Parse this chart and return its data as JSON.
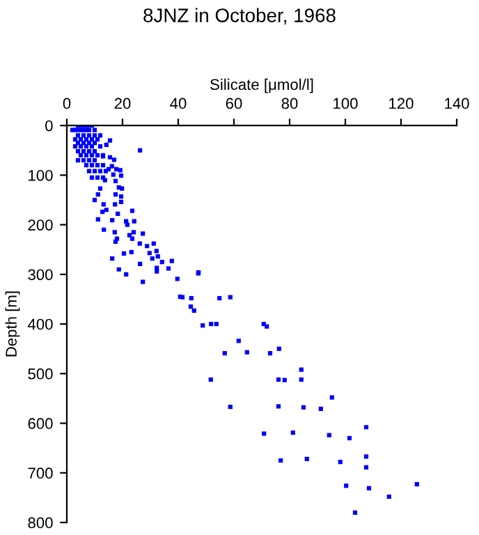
{
  "chart_data": {
    "type": "scatter",
    "title": "8JNZ in October, 1968",
    "xlabel": "Silicate [μmol/l]",
    "ylabel": "Depth [m]",
    "xlim": [
      0,
      140
    ],
    "xticks": [
      0,
      20,
      40,
      60,
      80,
      100,
      120,
      140
    ],
    "ylim": [
      800,
      0
    ],
    "yticks": [
      0,
      100,
      200,
      300,
      400,
      500,
      600,
      700,
      800
    ],
    "grid": false,
    "marker": "square",
    "series": [
      {
        "color": "#0000ff",
        "x": [
          4,
          5,
          6,
          7,
          8,
          9,
          2,
          3,
          4,
          5,
          6,
          7,
          8,
          10,
          4,
          6,
          8,
          10,
          12,
          3,
          5,
          7,
          9,
          11,
          4,
          6,
          8,
          10,
          3,
          5,
          7,
          9,
          12,
          4,
          6,
          8,
          10,
          5,
          7,
          9,
          11,
          13,
          4,
          6,
          8,
          10,
          7,
          9,
          11,
          13,
          8,
          10,
          12,
          14,
          9,
          11,
          13,
          15.5,
          14.2,
          26.3,
          13,
          15.5,
          17,
          16.2,
          15,
          19.2,
          17.8,
          19.5,
          16.7,
          13.7,
          17.5,
          18.7,
          19.8,
          17.5,
          19.5,
          11.2,
          12,
          10,
          13.2,
          17.3,
          19.5,
          14.2,
          12.8,
          18.3,
          23.5,
          16.3,
          11.2,
          21.3,
          24.2,
          21.7,
          13.3,
          17.2,
          27.3,
          24,
          22.5,
          18,
          17.5,
          23.5,
          26.2,
          20.5,
          23.2,
          28.8,
          31.2,
          32.2,
          29.7,
          30.7,
          32.7,
          34.2,
          37.7,
          16.3,
          26.3,
          36.5,
          32.3,
          32.3,
          18.7,
          21.3,
          47.3,
          47.2,
          39.7,
          27.3,
          40.7,
          41.5,
          44.7,
          54.8,
          58.7,
          44.5,
          45.7,
          48.8,
          51.8,
          53.7,
          70.7,
          71.8,
          61.7,
          56.7,
          64.7,
          73,
          76.2,
          84.2,
          51.7,
          76,
          78.2,
          84.2,
          95.2,
          58.7,
          76,
          85,
          91.2,
          107.5,
          101.5,
          94.2,
          70.8,
          81.2,
          107.5,
          98.2,
          86.2,
          76.8,
          107.5,
          100.3,
          108.5,
          125.7,
          115.7,
          103.5
        ],
        "values": [
          0,
          0,
          0,
          0,
          0,
          0,
          9,
          9,
          9,
          9,
          9,
          9,
          9,
          9,
          20,
          20,
          20,
          20,
          20,
          28,
          28,
          28,
          28,
          28,
          35,
          35,
          35,
          35,
          42,
          42,
          42,
          42,
          42,
          52,
          52,
          52,
          52,
          60,
          60,
          60,
          60,
          60,
          70,
          70,
          70,
          70,
          80,
          80,
          80,
          80,
          92,
          92,
          92,
          92,
          105,
          105,
          105,
          30,
          39,
          50,
          62,
          64,
          69,
          82,
          88,
          90,
          88,
          101,
          99,
          110,
          112,
          125,
          127,
          139,
          143,
          139,
          127,
          150,
          159,
          159,
          154,
          170,
          174,
          178,
          172,
          191,
          189,
          193,
          193,
          200,
          210,
          215,
          218,
          215,
          221,
          228,
          234,
          228,
          238,
          258,
          255,
          243,
          238,
          253,
          257,
          268,
          264,
          275,
          273,
          268,
          279,
          288,
          287,
          294,
          290,
          300,
          296,
          298,
          309,
          315,
          345,
          346,
          348,
          348,
          346,
          365,
          373,
          403,
          400,
          400,
          400,
          405,
          434,
          459,
          457,
          459,
          450,
          492,
          512,
          512,
          513,
          512,
          548,
          567,
          566,
          568,
          571,
          608,
          630,
          624,
          621,
          619,
          667,
          678,
          672,
          675,
          689,
          726,
          731,
          723,
          748,
          780
        ]
      }
    ]
  }
}
